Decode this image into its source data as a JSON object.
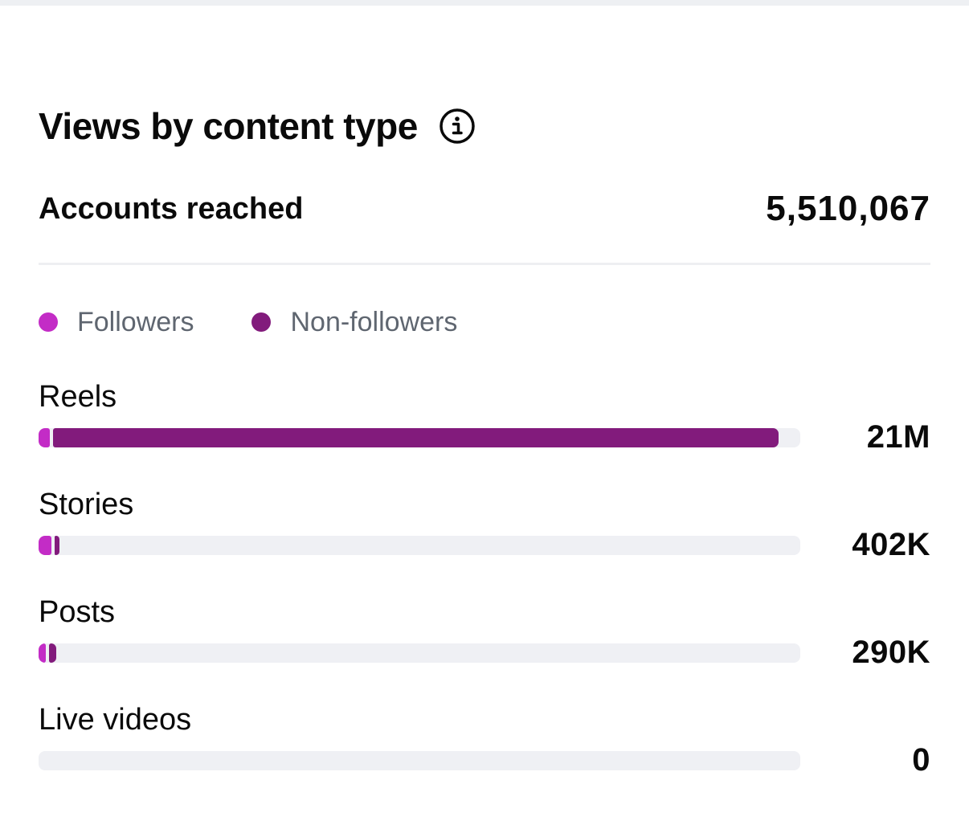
{
  "header": {
    "title": "Views by content type",
    "info_icon": "info-icon"
  },
  "summary": {
    "label": "Accounts reached",
    "value": "5,510,067"
  },
  "legend": [
    {
      "label": "Followers",
      "color": "#c32cc6"
    },
    {
      "label": "Non-followers",
      "color": "#821b7c"
    }
  ],
  "colors": {
    "followers": "#c32cc6",
    "non_followers": "#821b7c",
    "track": "#eff0f4"
  },
  "content_types": [
    {
      "label": "Reels",
      "value": "21M",
      "followers_share": 0.015,
      "non_followers_share": 0.953
    },
    {
      "label": "Stories",
      "value": "402K",
      "followers_share": 0.017,
      "non_followers_share": 0.006
    },
    {
      "label": "Posts",
      "value": "290K",
      "followers_share": 0.009,
      "non_followers_share": 0.009
    },
    {
      "label": "Live videos",
      "value": "0",
      "followers_share": 0,
      "non_followers_share": 0
    }
  ]
}
